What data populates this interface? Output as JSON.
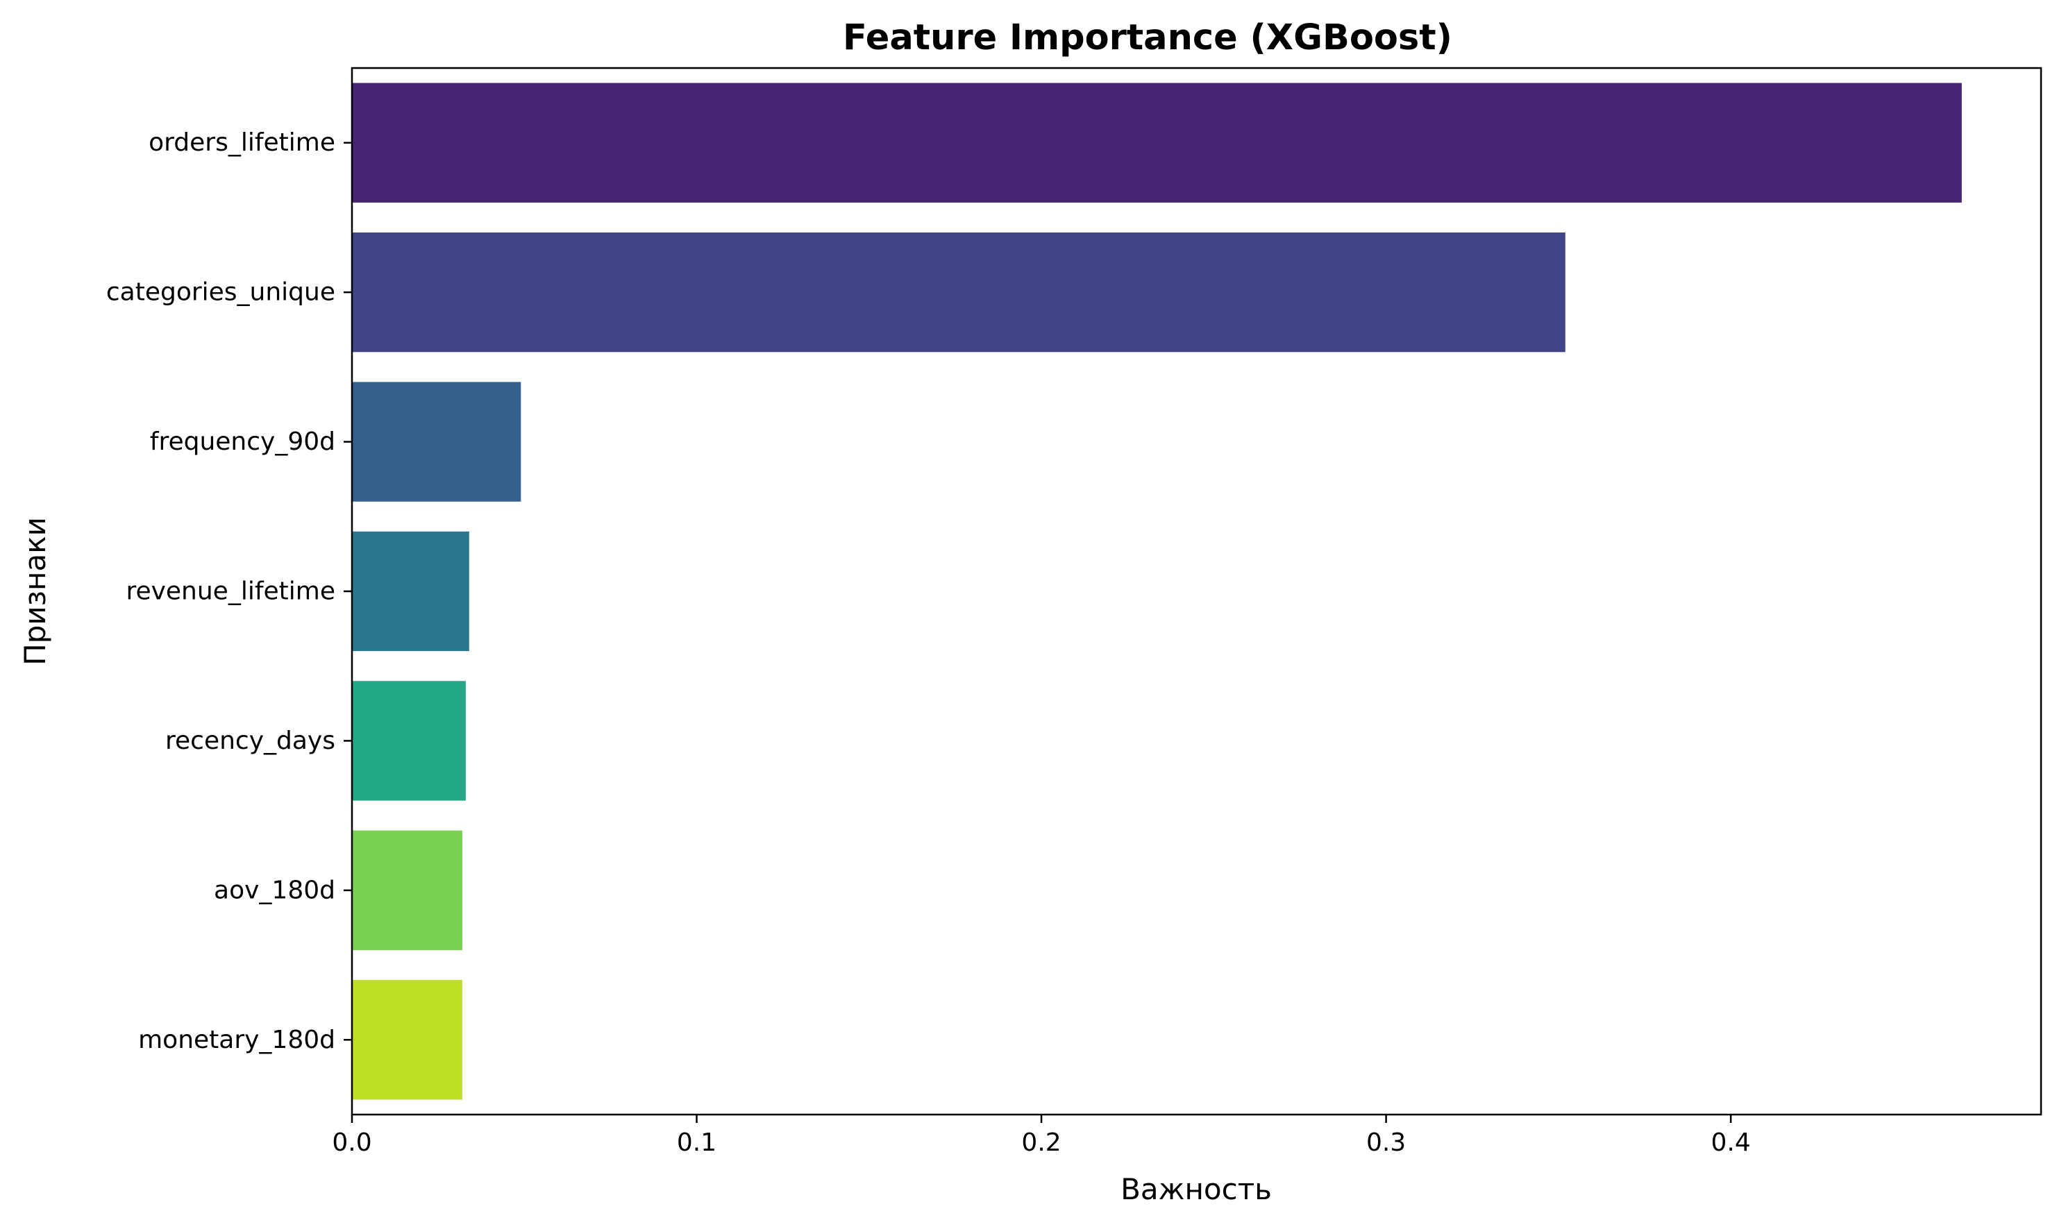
{
  "chart_data": {
    "type": "bar",
    "orientation": "horizontal",
    "title": "Feature Importance (XGBoost)",
    "xlabel": "Важность",
    "ylabel": "Признаки",
    "categories": [
      "orders_lifetime",
      "categories_unique",
      "frequency_90d",
      "revenue_lifetime",
      "recency_days",
      "aov_180d",
      "monetary_180d"
    ],
    "values": [
      0.467,
      0.352,
      0.049,
      0.034,
      0.033,
      0.032,
      0.032
    ],
    "colors": [
      "#482475",
      "#414487",
      "#355f8d",
      "#2a788e",
      "#22a884",
      "#7ad151",
      "#bddf26"
    ],
    "xlim": [
      0,
      0.49
    ],
    "xticks": [
      0.0,
      0.1,
      0.2,
      0.3,
      0.4
    ],
    "xtick_labels": [
      "0.0",
      "0.1",
      "0.2",
      "0.3",
      "0.4"
    ],
    "grid": false,
    "legend": "none"
  }
}
